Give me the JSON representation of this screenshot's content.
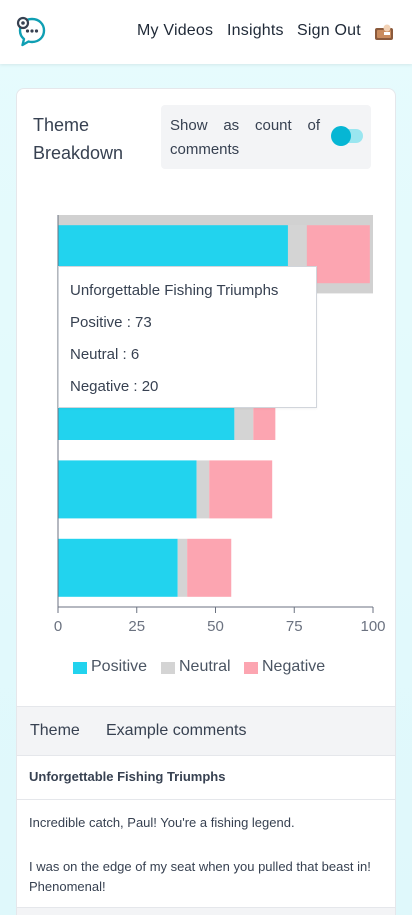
{
  "nav": {
    "my_videos": "My Videos",
    "insights": "Insights",
    "sign_out": "Sign Out",
    "logo_icon": "chat-bubble-logo-icon",
    "avatar_icon": "user-avatar-icon"
  },
  "card": {
    "title": "Theme Breakdown",
    "toggle_label": "Show as count of comments",
    "toggle_state": "on"
  },
  "colors": {
    "positive": "#22d3ee",
    "neutral": "#d4d4d4",
    "negative": "#fca5b1",
    "highlight": "#d1d1d1",
    "accent": "#06b6d4"
  },
  "tooltip": {
    "title": "Unforgettable Fishing Triumphs",
    "positive": "Positive : 73",
    "neutral": "Neutral : 6",
    "negative": "Negative : 20"
  },
  "chart_data": {
    "type": "bar",
    "orientation": "horizontal",
    "stacked": true,
    "categories": [
      "Unforgettable Fishing Triumphs",
      "",
      "",
      "",
      ""
    ],
    "series": [
      {
        "name": "Positive",
        "values": [
          73,
          40,
          56,
          44,
          38
        ]
      },
      {
        "name": "Neutral",
        "values": [
          6,
          3,
          6,
          4,
          3
        ]
      },
      {
        "name": "Negative",
        "values": [
          20,
          15,
          7,
          20,
          14
        ]
      }
    ],
    "highlighted_category": 0,
    "xlim": [
      0,
      100
    ],
    "xticks": [
      "0",
      "25",
      "50",
      "75",
      "100"
    ],
    "legend_position": "bottom",
    "grid": false
  },
  "legend": {
    "positive": "Positive",
    "neutral": "Neutral",
    "negative": "Negative"
  },
  "table": {
    "headers": {
      "theme": "Theme",
      "examples": "Example comments"
    },
    "theme": "Unforgettable Fishing Triumphs",
    "comments": [
      "Incredible catch, Paul! You're a fishing legend.",
      "I was on the edge of my seat when you pulled that beast in! Phenomenal!"
    ]
  }
}
